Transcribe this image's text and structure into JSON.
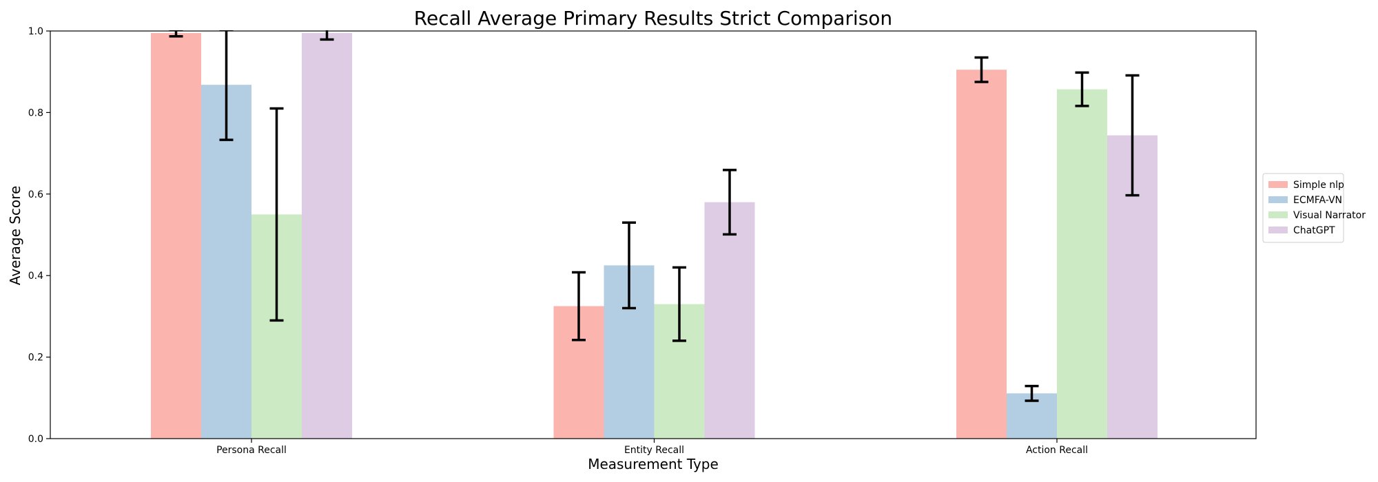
{
  "chart_data": {
    "type": "bar",
    "title": "Recall Average Primary Results Strict Comparison",
    "xlabel": "Measurement Type",
    "ylabel": "Average Score",
    "categories": [
      "Persona Recall",
      "Entity Recall",
      "Action Recall"
    ],
    "ylim": [
      0,
      1.0
    ],
    "yticks": [
      "0.0",
      "0.2",
      "0.4",
      "0.6",
      "0.8",
      "1.0"
    ],
    "grid": false,
    "legend_position": "right",
    "series": [
      {
        "name": "Simple nlp",
        "color": "#fbb4ae",
        "values": [
          0.995,
          0.325,
          0.905
        ],
        "errors": [
          0.008,
          0.083,
          0.03
        ]
      },
      {
        "name": "ECMFA-VN",
        "color": "#b3cde3",
        "values": [
          0.868,
          0.425,
          0.111
        ],
        "errors": [
          0.135,
          0.105,
          0.018
        ]
      },
      {
        "name": "Visual Narrator",
        "color": "#ccebc5",
        "values": [
          0.55,
          0.33,
          0.857
        ],
        "errors": [
          0.26,
          0.09,
          0.041
        ]
      },
      {
        "name": "ChatGPT",
        "color": "#decbe4",
        "values": [
          0.995,
          0.58,
          0.744
        ],
        "errors": [
          0.016,
          0.079,
          0.147
        ]
      }
    ]
  }
}
